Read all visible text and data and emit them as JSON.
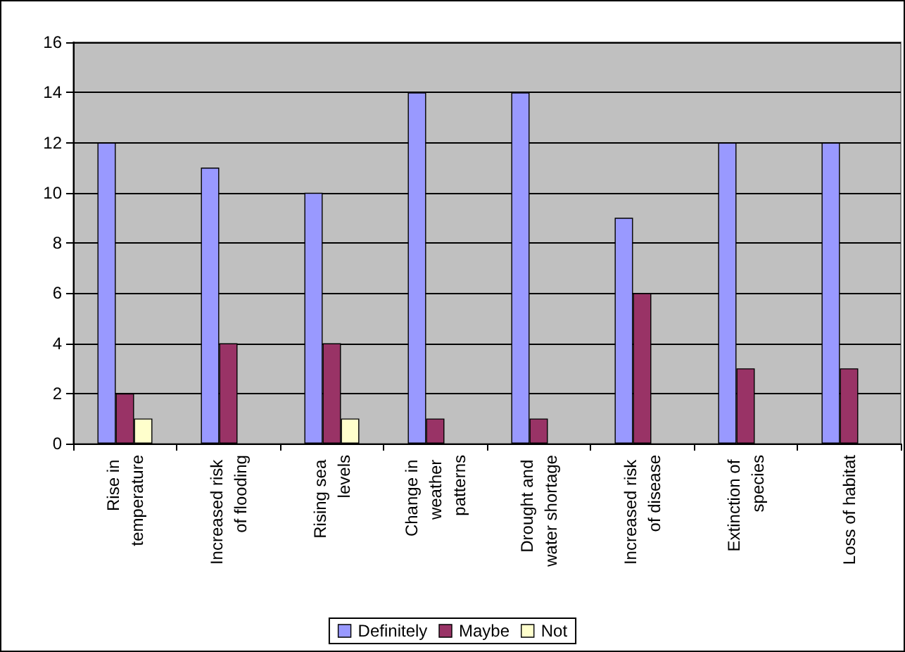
{
  "chart_data": {
    "type": "bar",
    "categories": [
      "Rise in temperature",
      "Increased risk of flooding",
      "Rising sea levels",
      "Change in weather patterns",
      "Drought and water shortage",
      "Increased risk of disease",
      "Extinction of species",
      "Loss of habitat"
    ],
    "series": [
      {
        "name": "Definitely",
        "color": "#9999ff",
        "values": [
          12,
          11,
          10,
          14,
          14,
          9,
          12,
          12
        ]
      },
      {
        "name": "Maybe",
        "color": "#993366",
        "values": [
          2,
          4,
          4,
          1,
          1,
          6,
          3,
          3
        ]
      },
      {
        "name": "Not",
        "color": "#ffffcc",
        "values": [
          1,
          null,
          1,
          null,
          null,
          null,
          null,
          null
        ]
      }
    ],
    "ylim": [
      0,
      16
    ],
    "yticks": [
      0,
      2,
      4,
      6,
      8,
      10,
      12,
      14,
      16
    ],
    "grid": "y",
    "legend": "bottom"
  }
}
